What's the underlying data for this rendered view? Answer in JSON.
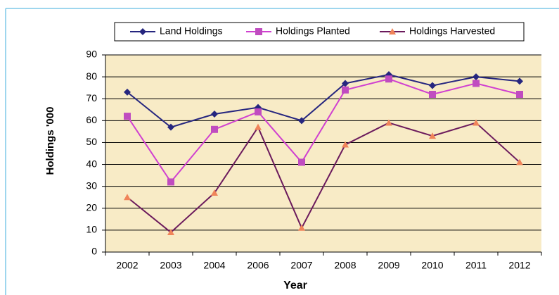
{
  "chart_data": {
    "type": "line",
    "y_label": "Holdings '000",
    "x_label": "Year",
    "categories": [
      "2002",
      "2003",
      "2004",
      "2006",
      "2007",
      "2008",
      "2009",
      "2010",
      "2011",
      "2012"
    ],
    "series": [
      {
        "name": "Land Holdings",
        "color": "#26267f",
        "marker": "diamond",
        "marker_color": "#26267f",
        "values": [
          73,
          57,
          63,
          66,
          60,
          77,
          81,
          76,
          80,
          78
        ]
      },
      {
        "name": "Holdings Planted",
        "color": "#d040d0",
        "marker": "square",
        "marker_color": "#c04cc0",
        "values": [
          62,
          32,
          56,
          64,
          41,
          74,
          79,
          72,
          77,
          72
        ]
      },
      {
        "name": "Holdings Harvested",
        "color": "#6b1a5c",
        "marker": "triangle",
        "marker_color": "#f0845a",
        "values": [
          25,
          9,
          27,
          57,
          11,
          49,
          59,
          53,
          59,
          41
        ]
      }
    ],
    "ylim": [
      0,
      90
    ],
    "yticks": [
      0,
      10,
      20,
      30,
      40,
      50,
      60,
      70,
      80,
      90
    ],
    "grid": true
  }
}
